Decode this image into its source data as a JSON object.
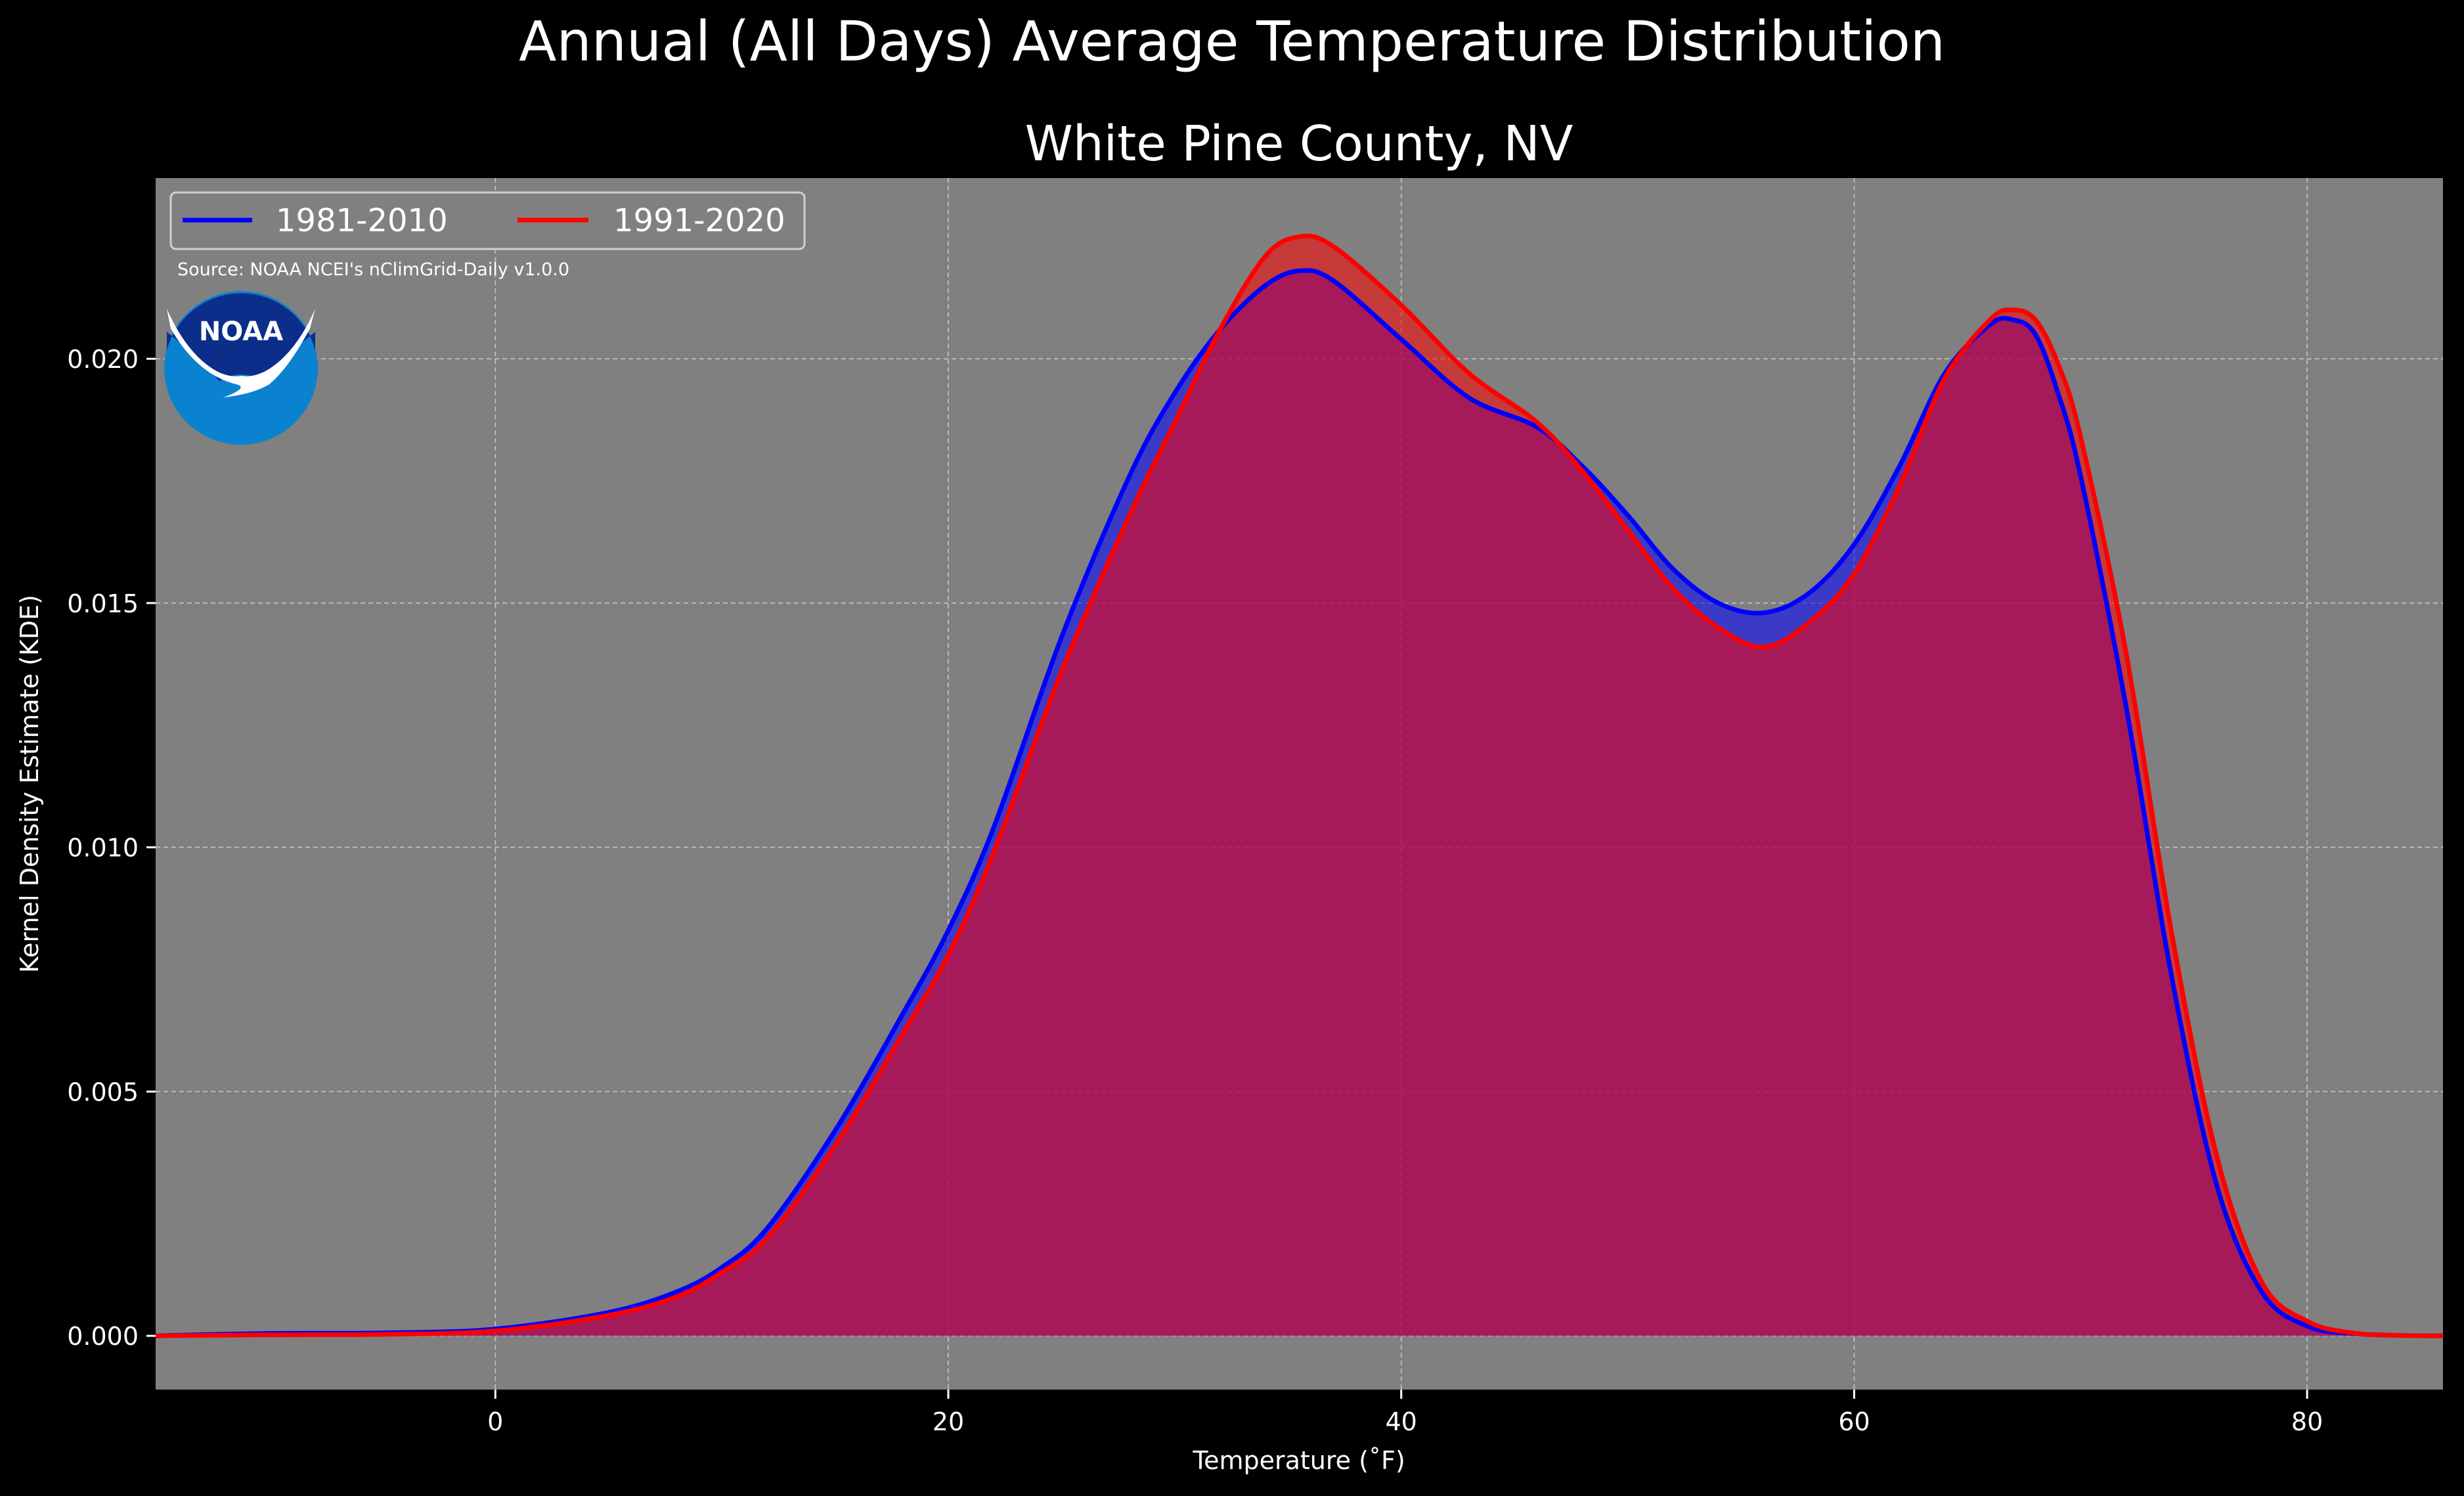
{
  "chart_data": {
    "type": "area",
    "title": "Annual (All Days) Average Temperature Distribution",
    "subtitle": "White Pine County, NV",
    "xlabel": "Temperature ($^\\circ$F)",
    "xlabel_display": "Temperature (˚F)",
    "ylabel": "Kernel Density Estimate (KDE)",
    "xlim": [
      -15,
      86
    ],
    "ylim": [
      -0.0011,
      0.0237
    ],
    "xticks": [
      0,
      20,
      40,
      60,
      80
    ],
    "xtick_labels": [
      "0",
      "20",
      "40",
      "60",
      "80"
    ],
    "yticks": [
      0.0,
      0.005,
      0.01,
      0.015,
      0.02
    ],
    "ytick_labels": [
      "0.000",
      "0.005",
      "0.010",
      "0.015",
      "0.020"
    ],
    "grid": true,
    "legend_position": "top-left",
    "source": "Source: NOAA NCEI's nClimGrid-Daily v1.0.0",
    "logo_text": "NOAA",
    "colors": {
      "figure_bg": "#000000",
      "axes_bg": "#808080",
      "series_1": "#0000ff",
      "series_2": "#ff0000",
      "overlap_fill": "#9e1f5e",
      "text": "#ffffff"
    },
    "series": [
      {
        "name": "1981-2010",
        "color": "#0000ff",
        "x": [
          -15,
          -10,
          -5,
          0,
          5,
          8,
          10,
          12,
          15,
          18,
          20,
          22,
          25,
          28,
          30,
          32,
          34,
          35.5,
          37,
          40,
          43,
          46,
          48,
          50,
          52,
          54,
          56,
          58,
          60,
          62,
          64,
          66,
          67,
          68,
          69,
          70,
          72,
          74,
          76,
          78,
          80,
          82,
          84,
          86
        ],
        "y": [
          0.0,
          5e-05,
          6e-05,
          0.00014,
          0.00048,
          0.0009,
          0.0014,
          0.0022,
          0.0042,
          0.0066,
          0.0083,
          0.0104,
          0.0143,
          0.0176,
          0.0193,
          0.0206,
          0.0215,
          0.0218,
          0.0216,
          0.0204,
          0.0192,
          0.0186,
          0.0178,
          0.0168,
          0.0157,
          0.015,
          0.0148,
          0.0152,
          0.0162,
          0.0178,
          0.0197,
          0.0207,
          0.0208,
          0.0205,
          0.0193,
          0.0176,
          0.0129,
          0.0074,
          0.0031,
          0.0009,
          0.0002,
          5e-05,
          1e-05,
          0.0
        ]
      },
      {
        "name": "1991-2020",
        "color": "#ff0000",
        "x": [
          -15,
          -10,
          -5,
          0,
          5,
          8,
          10,
          12,
          15,
          18,
          20,
          22,
          25,
          28,
          30,
          32,
          34,
          35.5,
          37,
          40,
          43,
          46,
          48,
          50,
          52,
          54,
          56,
          58,
          60,
          62,
          64,
          66,
          67,
          68,
          69,
          70,
          72,
          74,
          76,
          78,
          80,
          82,
          84,
          86
        ],
        "y": [
          0.0,
          2e-05,
          3e-05,
          0.0001,
          0.00042,
          0.0008,
          0.0013,
          0.002,
          0.0039,
          0.0062,
          0.0078,
          0.0099,
          0.0136,
          0.0168,
          0.0187,
          0.0206,
          0.0221,
          0.0225,
          0.0223,
          0.0211,
          0.0197,
          0.0187,
          0.0177,
          0.0165,
          0.0153,
          0.0145,
          0.0141,
          0.0146,
          0.0156,
          0.0174,
          0.0196,
          0.0208,
          0.021,
          0.0208,
          0.0199,
          0.0184,
          0.014,
          0.0083,
          0.0037,
          0.0011,
          0.0003,
          6e-05,
          1e-05,
          0.0
        ]
      }
    ]
  }
}
